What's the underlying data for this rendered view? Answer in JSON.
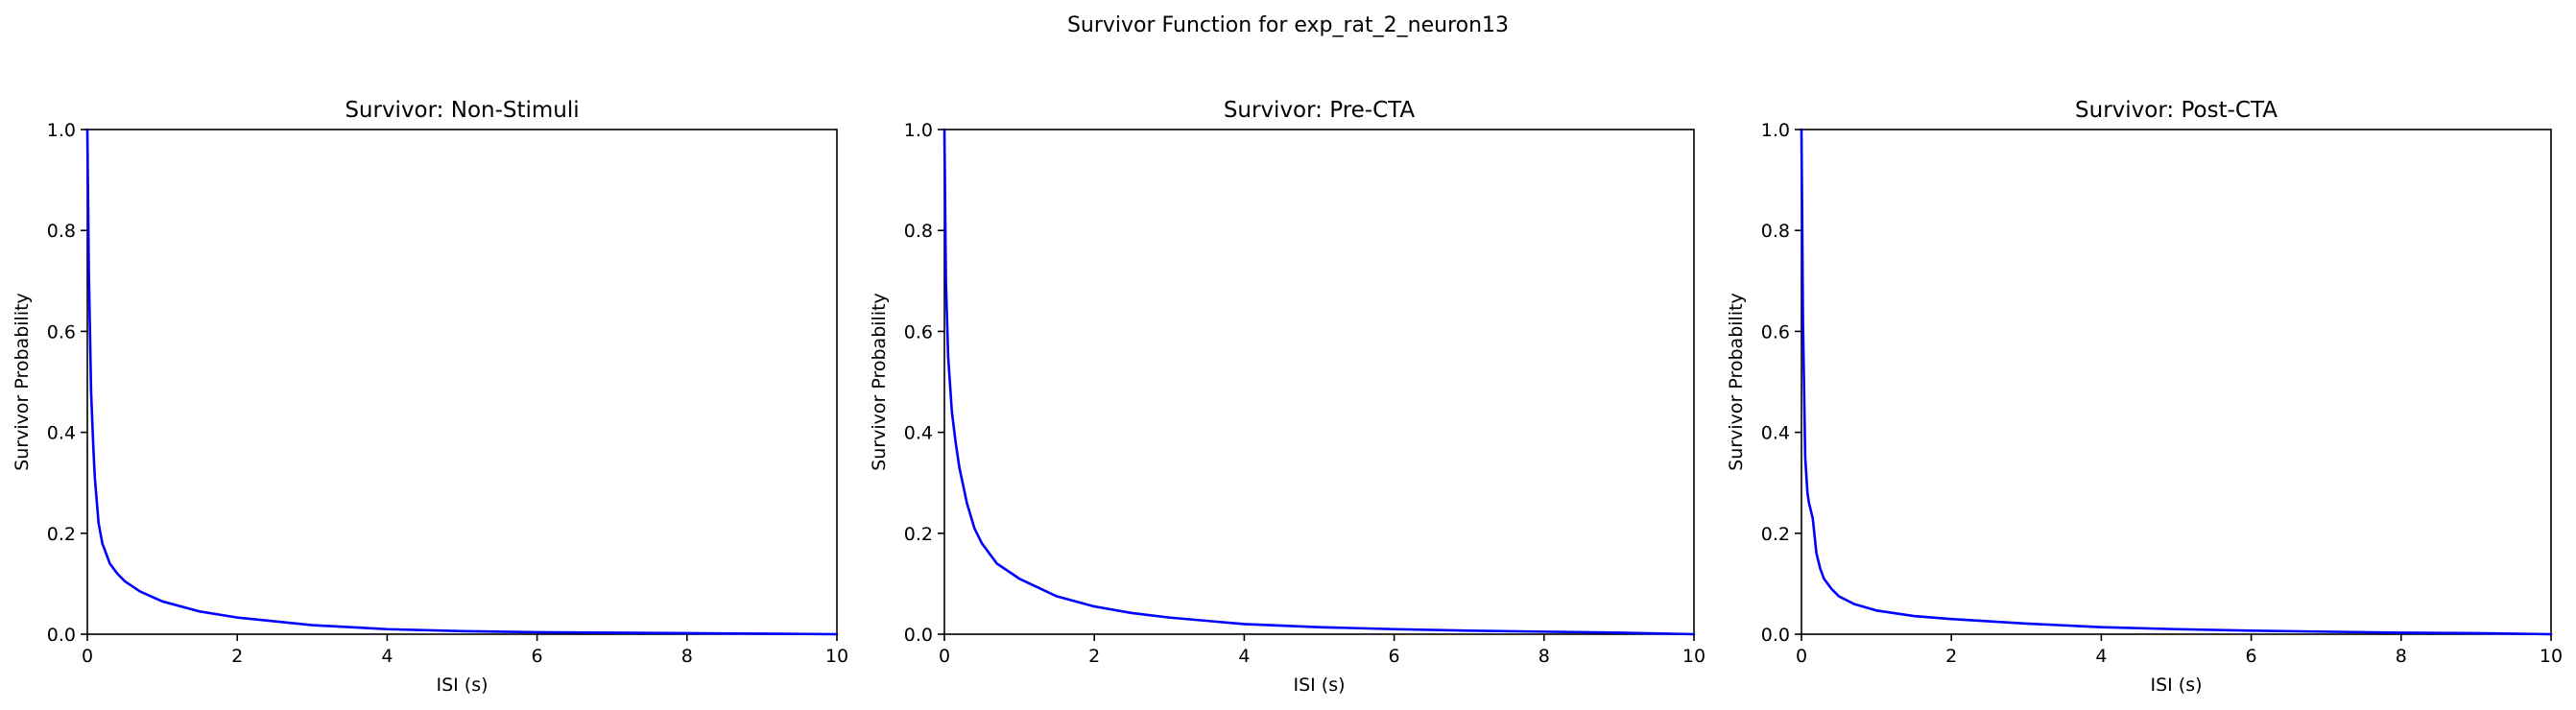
{
  "suptitle": "Survivor Function for exp_rat_2_neuron13",
  "chart_data": [
    {
      "type": "line",
      "title": "Survivor: Non-Stimuli",
      "xlabel": "ISI (s)",
      "ylabel": "Survivor Probability",
      "xlim": [
        0,
        10
      ],
      "ylim": [
        0,
        1
      ],
      "xticks": [
        "0",
        "2",
        "4",
        "6",
        "8",
        "10"
      ],
      "yticks": [
        "0.0",
        "0.2",
        "0.4",
        "0.6",
        "0.8",
        "1.0"
      ],
      "grid": false,
      "color": "#0000ff",
      "x": [
        0,
        0.02,
        0.05,
        0.08,
        0.1,
        0.15,
        0.2,
        0.3,
        0.4,
        0.5,
        0.7,
        1,
        1.5,
        2,
        3,
        4,
        5,
        6,
        7,
        8,
        9,
        10
      ],
      "y": [
        1.0,
        0.72,
        0.48,
        0.37,
        0.31,
        0.22,
        0.18,
        0.14,
        0.12,
        0.105,
        0.085,
        0.065,
        0.045,
        0.033,
        0.018,
        0.01,
        0.006,
        0.004,
        0.003,
        0.002,
        0.001,
        0.0
      ]
    },
    {
      "type": "line",
      "title": "Survivor: Pre-CTA",
      "xlabel": "ISI (s)",
      "ylabel": "Survivor Probability",
      "xlim": [
        0,
        10
      ],
      "ylim": [
        0,
        1
      ],
      "xticks": [
        "0",
        "2",
        "4",
        "6",
        "8",
        "10"
      ],
      "yticks": [
        "0.0",
        "0.2",
        "0.4",
        "0.6",
        "0.8",
        "1.0"
      ],
      "grid": false,
      "color": "#0000ff",
      "x": [
        0,
        0.02,
        0.05,
        0.1,
        0.15,
        0.2,
        0.3,
        0.4,
        0.5,
        0.7,
        1,
        1.5,
        2,
        2.5,
        3,
        4,
        5,
        6,
        7,
        8,
        9,
        10
      ],
      "y": [
        1.0,
        0.7,
        0.55,
        0.44,
        0.38,
        0.33,
        0.26,
        0.21,
        0.18,
        0.14,
        0.11,
        0.075,
        0.055,
        0.042,
        0.033,
        0.02,
        0.014,
        0.01,
        0.007,
        0.005,
        0.003,
        0.0
      ]
    },
    {
      "type": "line",
      "title": "Survivor: Post-CTA",
      "xlabel": "ISI (s)",
      "ylabel": "Survivor Probability",
      "xlim": [
        0,
        10
      ],
      "ylim": [
        0,
        1
      ],
      "xticks": [
        "0",
        "2",
        "4",
        "6",
        "8",
        "10"
      ],
      "yticks": [
        "0.0",
        "0.2",
        "0.4",
        "0.6",
        "0.8",
        "1.0"
      ],
      "grid": false,
      "color": "#0000ff",
      "x": [
        0,
        0.02,
        0.05,
        0.08,
        0.1,
        0.15,
        0.2,
        0.25,
        0.3,
        0.4,
        0.5,
        0.7,
        1,
        1.5,
        2,
        3,
        4,
        5,
        6,
        7,
        8,
        9,
        10
      ],
      "y": [
        1.0,
        0.62,
        0.35,
        0.28,
        0.26,
        0.23,
        0.16,
        0.13,
        0.11,
        0.09,
        0.075,
        0.06,
        0.047,
        0.036,
        0.03,
        0.021,
        0.014,
        0.01,
        0.007,
        0.005,
        0.003,
        0.002,
        0.0
      ]
    }
  ]
}
